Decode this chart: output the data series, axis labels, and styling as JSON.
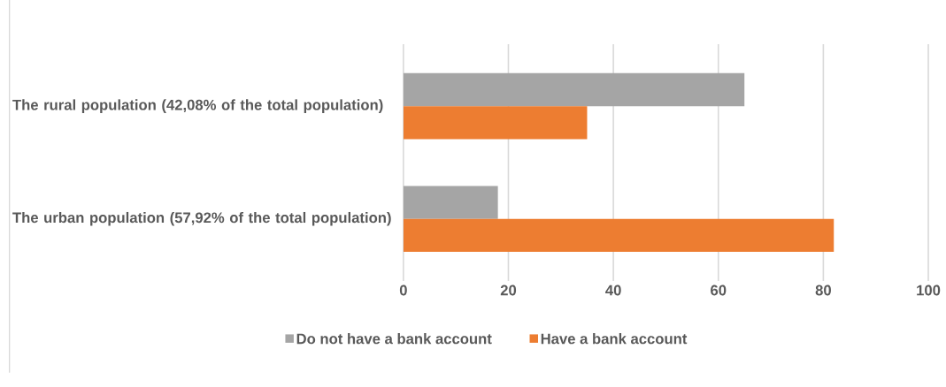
{
  "chart_data": {
    "type": "bar",
    "orientation": "horizontal",
    "categories": [
      "The rural population (42,08% of the total population)",
      "The urban population (57,92% of the total population)"
    ],
    "series": [
      {
        "name": "Do not have a bank account",
        "color": "#a5a5a5",
        "values": [
          65,
          18
        ]
      },
      {
        "name": "Have a bank account",
        "color": "#ed7d31",
        "values": [
          35,
          82
        ]
      }
    ],
    "xlim": [
      0,
      100
    ],
    "xticks": [
      0,
      20,
      40,
      60,
      80,
      100
    ],
    "grid": "x",
    "legend": "bottom"
  }
}
